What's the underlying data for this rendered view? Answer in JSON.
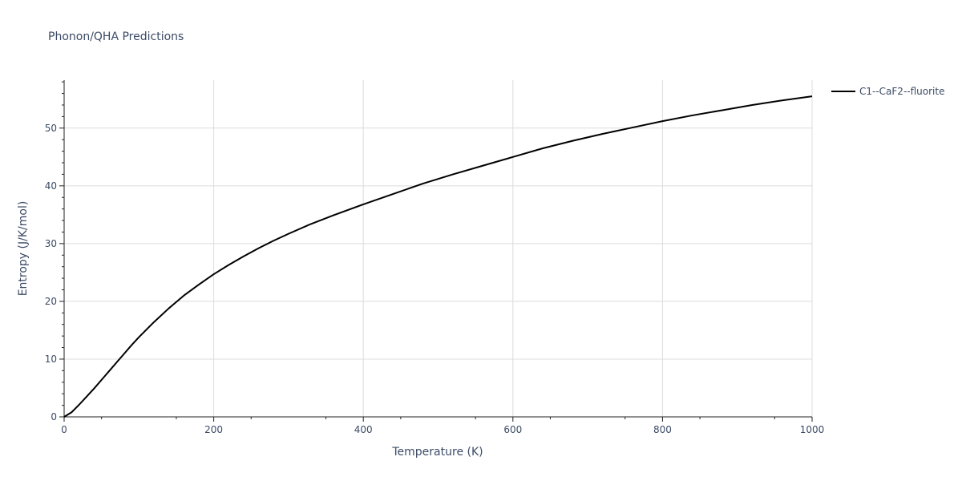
{
  "chart_data": {
    "type": "line",
    "title": "Phonon/QHA Predictions",
    "xlabel": "Temperature (K)",
    "ylabel": "Entropy (J/K/mol)",
    "xlim": [
      0,
      1000
    ],
    "ylim": [
      0,
      58.3
    ],
    "x_ticks": [
      0,
      200,
      400,
      600,
      800,
      1000
    ],
    "x_tick_labels": [
      "0",
      "200",
      "400",
      "600",
      "800",
      "1000"
    ],
    "y_ticks": [
      0,
      10,
      20,
      30,
      40,
      50
    ],
    "y_tick_labels": [
      "0",
      "10",
      "20",
      "30",
      "40",
      "50"
    ],
    "grid": true,
    "legend_position": "top-right",
    "series": [
      {
        "name": "C1--CaF2--fluorite",
        "color": "#000000",
        "x": [
          0,
          5,
          10,
          20,
          30,
          40,
          50,
          60,
          70,
          80,
          90,
          100,
          120,
          140,
          160,
          180,
          200,
          220,
          240,
          260,
          280,
          300,
          330,
          360,
          400,
          440,
          480,
          520,
          560,
          600,
          640,
          680,
          720,
          760,
          800,
          840,
          880,
          920,
          960,
          1000
        ],
        "values": [
          0,
          0.4,
          0.8,
          2.1,
          3.5,
          4.9,
          6.4,
          7.9,
          9.4,
          10.9,
          12.4,
          13.8,
          16.4,
          18.8,
          21.0,
          22.9,
          24.7,
          26.3,
          27.8,
          29.2,
          30.5,
          31.7,
          33.4,
          34.9,
          36.8,
          38.6,
          40.4,
          42.0,
          43.5,
          45.0,
          46.5,
          47.8,
          49.0,
          50.1,
          51.2,
          52.2,
          53.1,
          54.0,
          54.8,
          55.5
        ]
      }
    ]
  }
}
